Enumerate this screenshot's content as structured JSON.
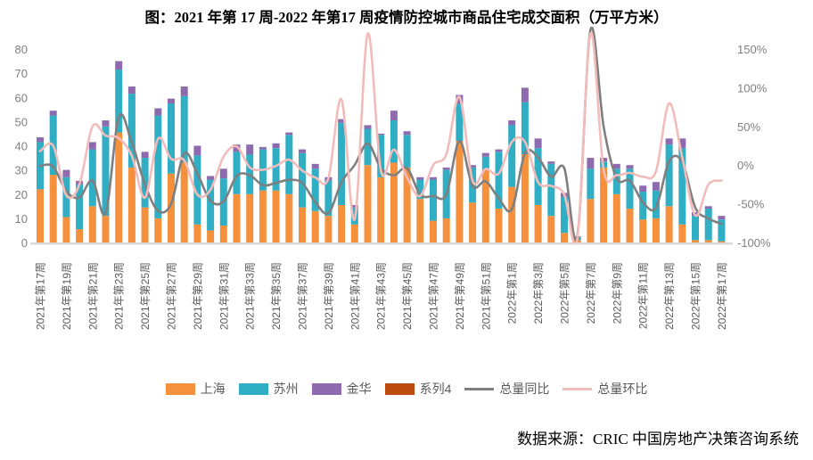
{
  "title": "图：2021 年第 17 周-2022 年第17 周疫情防控城市商品住宅成交面积（万平方米）",
  "source": "数据来源：CRIC 中国房地产决策咨询系统",
  "colors": {
    "shanghai": "#F5913D",
    "suzhou": "#2FAEC4",
    "jinhua": "#8E6BAE",
    "series4": "#BC4B0F",
    "yoy_line": "#7F7F7F",
    "wow_line": "#F2BCBB",
    "axis_text": "#808080",
    "baseline": "#D9D9D9"
  },
  "axes": {
    "left_ticks": [
      "0",
      "10",
      "20",
      "30",
      "40",
      "50",
      "60",
      "70",
      "80"
    ],
    "right_ticks": [
      "-100%",
      "-50%",
      "0%",
      "50%",
      "100%",
      "150%"
    ],
    "ylim_left": [
      0,
      80
    ],
    "ylim_right_pct": [
      -100,
      150
    ]
  },
  "chart_data": {
    "type": "bar",
    "subtype": "stacked-bars-with-two-percent-lines",
    "n_bars": 53,
    "x_labels_visible": [
      "2021年第17周",
      "2021年第19周",
      "2021年第21周",
      "2021年第23周",
      "2021年第25周",
      "2021年第27周",
      "2021年第29周",
      "2021年第31周",
      "2021年第33周",
      "2021年第35周",
      "2021年第37周",
      "2021年第39周",
      "2021年第41周",
      "2021年第43周",
      "2021年第45周",
      "2021年第47周",
      "2021年第49周",
      "2021年第51周",
      "2022年第1周",
      "2022年第3周",
      "2022年第5周",
      "2022年第7周",
      "2022年第9周",
      "2022年第11周",
      "2022年第13周",
      "2022年第15周",
      "2022年第17周"
    ],
    "bars_per_label_interval": 2,
    "series": [
      {
        "name": "上海",
        "key": "shanghai",
        "values": [
          22,
          28,
          10.5,
          5.5,
          15,
          11,
          45.5,
          31,
          14.5,
          10,
          28.5,
          33,
          7.5,
          5,
          7,
          20,
          20,
          21.5,
          21.5,
          20,
          14.5,
          13,
          11,
          15.5,
          7.5,
          32,
          27,
          33,
          31,
          18,
          9,
          10,
          42,
          16.5,
          30,
          14,
          23,
          36.5,
          15.5,
          11,
          4,
          1,
          18,
          31,
          20,
          14,
          9.5,
          10,
          15,
          7.5,
          1,
          1,
          0.5
        ]
      },
      {
        "name": "苏州",
        "key": "suzhou",
        "values": [
          19.5,
          24.5,
          16.5,
          18.5,
          23.5,
          37,
          26,
          30.5,
          20.5,
          42.5,
          29,
          27.5,
          28.5,
          21,
          19.5,
          17.5,
          16.5,
          17,
          17.5,
          24.5,
          22.5,
          17.5,
          14.5,
          34,
          7,
          15,
          17.5,
          17.5,
          13.5,
          8,
          17,
          20,
          15.5,
          14.5,
          5.5,
          23.5,
          25.5,
          21.5,
          23.5,
          21.5,
          15,
          1,
          12.5,
          2.5,
          10.5,
          16.5,
          11.5,
          11.5,
          25.5,
          31.5,
          10,
          13,
          9
        ]
      },
      {
        "name": "金华",
        "key": "jinhua",
        "values": [
          2,
          2,
          3,
          1.5,
          3,
          2.5,
          3.5,
          3,
          2.5,
          3,
          2,
          4,
          4,
          1.5,
          4,
          3,
          4,
          1,
          2,
          1,
          1.5,
          2,
          1.5,
          1.5,
          1,
          1.5,
          0.5,
          4,
          1.5,
          1,
          1,
          1,
          3.5,
          1,
          1.5,
          1,
          2,
          6,
          4,
          1,
          1.5,
          0.5,
          4.5,
          1.5,
          2,
          1.5,
          2.5,
          3.5,
          2.5,
          4,
          1.5,
          1,
          1.5
        ]
      },
      {
        "name": "系列4",
        "key": "series4",
        "values": [
          0,
          0,
          0,
          0,
          0,
          0,
          0,
          0,
          0,
          0,
          0,
          0,
          0,
          0,
          0,
          0,
          0,
          0,
          0,
          0,
          0,
          0,
          0,
          0,
          0,
          0,
          0,
          0,
          0,
          0,
          0,
          0,
          0,
          0,
          0,
          0,
          0,
          0,
          0,
          0,
          0,
          0,
          0,
          0,
          0,
          0,
          0,
          0,
          0,
          0,
          0,
          0,
          0
        ]
      }
    ],
    "lines": [
      {
        "name": "总量同比",
        "key": "yoy_line",
        "axis": "right_pct",
        "values": [
          -1,
          -2,
          -34,
          -42,
          -20,
          -62,
          62,
          29,
          -25,
          -59,
          -50,
          15,
          -11,
          -46,
          -47,
          -14,
          -13,
          -26,
          -23,
          -19,
          -23,
          -48,
          -62,
          -22,
          0,
          28,
          -4,
          -13,
          -4,
          -38,
          -40,
          -38,
          31,
          -27,
          -21,
          -43,
          -57,
          15,
          10,
          -15,
          -4,
          -91,
          175,
          50,
          -17,
          -20,
          -48,
          -55,
          5,
          4,
          -55,
          -69,
          -76
        ]
      },
      {
        "name": "总量环比",
        "key": "wow_line",
        "axis": "right_pct",
        "values": [
          18,
          25,
          -39,
          -25,
          50,
          38,
          35,
          12,
          -42,
          34,
          8,
          6,
          -38,
          -32,
          11,
          24,
          -3,
          -6,
          -1,
          7,
          -7,
          -16,
          -17,
          85,
          -70,
          170,
          -7,
          20,
          -16,
          -40,
          0,
          14,
          88,
          -20,
          -5,
          -11,
          30,
          30,
          -22,
          -27,
          -38,
          -95,
          170,
          -6,
          -13,
          -10,
          -15,
          -8,
          80,
          10,
          -65,
          -25,
          -20
        ]
      }
    ],
    "note_offscale": "line values above 150% are drawn spiking past the top of the plot (clipped), shown here as 170/175"
  },
  "legend": {
    "items": [
      {
        "label": "上海",
        "type": "bar",
        "color_key": "shanghai"
      },
      {
        "label": "苏州",
        "type": "bar",
        "color_key": "suzhou"
      },
      {
        "label": "金华",
        "type": "bar",
        "color_key": "jinhua"
      },
      {
        "label": "系列4",
        "type": "bar",
        "color_key": "series4"
      },
      {
        "label": "总量同比",
        "type": "line",
        "color_key": "yoy_line"
      },
      {
        "label": "总量环比",
        "type": "line",
        "color_key": "wow_line"
      }
    ]
  }
}
